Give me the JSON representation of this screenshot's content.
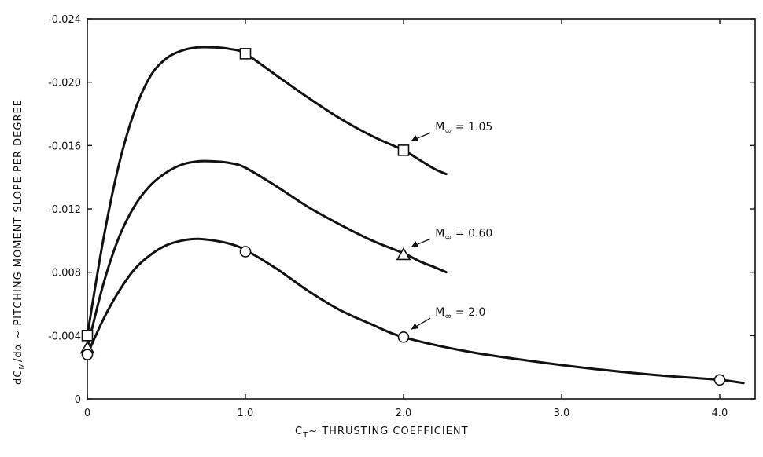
{
  "chart_data": {
    "type": "line",
    "xlabel": "C",
    "xlabel_sub": "T",
    "xlabel_rest": "~ THRUSTING COEFFICIENT",
    "ylabel_pre": "dC",
    "ylabel_sub": "M",
    "ylabel_rest": "/dα ~ PITCHING MOMENT SLOPE PER DEGREE",
    "xlim": [
      0,
      4.15
    ],
    "ylim": [
      0,
      0.024
    ],
    "x_ticks": [
      0,
      1.0,
      2.0,
      3.0,
      4.0
    ],
    "x_tick_labels": [
      "0",
      "1.0",
      "2.0",
      "3.0",
      "4.0"
    ],
    "y_ticks": [
      0,
      0.004,
      0.008,
      0.012,
      0.016,
      0.02,
      0.024
    ],
    "y_tick_labels": [
      "0",
      "-0.004",
      "0.008",
      "-0.012",
      "-0.016",
      "-0.020",
      "-0.024"
    ],
    "grid": false,
    "series": [
      {
        "name": "M∞ = 1.05",
        "label_main": "M",
        "label_sub": "∞",
        "label_value": "= 1.05",
        "marker": "square",
        "curve": [
          [
            0.0,
            0.004
          ],
          [
            0.1,
            0.01
          ],
          [
            0.2,
            0.0148
          ],
          [
            0.3,
            0.0182
          ],
          [
            0.4,
            0.0204
          ],
          [
            0.5,
            0.0215
          ],
          [
            0.6,
            0.022
          ],
          [
            0.7,
            0.0222
          ],
          [
            0.8,
            0.0222
          ],
          [
            0.9,
            0.0221
          ],
          [
            1.0,
            0.0218
          ],
          [
            1.2,
            0.0204
          ],
          [
            1.4,
            0.019
          ],
          [
            1.6,
            0.0177
          ],
          [
            1.8,
            0.0166
          ],
          [
            2.0,
            0.0157
          ],
          [
            2.1,
            0.0151
          ],
          [
            2.2,
            0.0145
          ],
          [
            2.27,
            0.0142
          ]
        ],
        "markers": [
          [
            0.0,
            0.004
          ],
          [
            1.0,
            0.0218
          ],
          [
            2.0,
            0.0157
          ]
        ],
        "label_at": [
          2.2,
          0.0172
        ],
        "arrow_to": [
          2.02,
          0.016
        ]
      },
      {
        "name": "M∞ = 0.60",
        "label_main": "M",
        "label_sub": "∞",
        "label_value": "= 0.60",
        "marker": "triangle",
        "curve": [
          [
            0.0,
            0.0032
          ],
          [
            0.1,
            0.0072
          ],
          [
            0.2,
            0.0102
          ],
          [
            0.3,
            0.0122
          ],
          [
            0.4,
            0.0135
          ],
          [
            0.5,
            0.0143
          ],
          [
            0.6,
            0.0148
          ],
          [
            0.7,
            0.015
          ],
          [
            0.8,
            0.015
          ],
          [
            0.9,
            0.0149
          ],
          [
            1.0,
            0.0146
          ],
          [
            1.2,
            0.0134
          ],
          [
            1.4,
            0.0121
          ],
          [
            1.6,
            0.011
          ],
          [
            1.8,
            0.01
          ],
          [
            2.0,
            0.0092
          ],
          [
            2.1,
            0.0087
          ],
          [
            2.2,
            0.0083
          ],
          [
            2.27,
            0.008
          ]
        ],
        "markers": [
          [
            0.0,
            0.0032
          ],
          [
            2.0,
            0.0091
          ]
        ],
        "label_at": [
          2.2,
          0.0105
        ],
        "arrow_to": [
          2.02,
          0.0093
        ]
      },
      {
        "name": "M∞ = 2.0",
        "label_main": "M",
        "label_sub": "∞",
        "label_value": "= 2.0",
        "marker": "circle",
        "curve": [
          [
            0.0,
            0.0028
          ],
          [
            0.1,
            0.005
          ],
          [
            0.2,
            0.0068
          ],
          [
            0.3,
            0.0082
          ],
          [
            0.4,
            0.0091
          ],
          [
            0.5,
            0.0097
          ],
          [
            0.6,
            0.01
          ],
          [
            0.7,
            0.0101
          ],
          [
            0.8,
            0.01
          ],
          [
            0.9,
            0.0098
          ],
          [
            1.0,
            0.0094
          ],
          [
            1.2,
            0.0082
          ],
          [
            1.4,
            0.0068
          ],
          [
            1.6,
            0.0056
          ],
          [
            1.8,
            0.0047
          ],
          [
            2.0,
            0.0039
          ],
          [
            2.4,
            0.003
          ],
          [
            2.8,
            0.0024
          ],
          [
            3.2,
            0.0019
          ],
          [
            3.6,
            0.0015
          ],
          [
            4.0,
            0.0012
          ],
          [
            4.15,
            0.001
          ]
        ],
        "markers": [
          [
            0.0,
            0.0028
          ],
          [
            1.0,
            0.0093
          ],
          [
            2.0,
            0.0039
          ],
          [
            4.0,
            0.0012
          ]
        ],
        "label_at": [
          2.2,
          0.0055
        ],
        "arrow_to": [
          2.02,
          0.0041
        ]
      }
    ]
  }
}
